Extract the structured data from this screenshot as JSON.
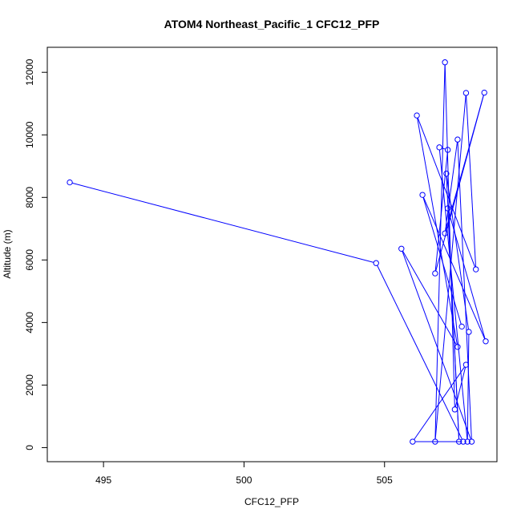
{
  "chart_data": {
    "type": "line",
    "title": "ATOM4 Northeast_Pacific_1 CFC12_PFP",
    "xlabel": "CFC12_PFP",
    "ylabel": "Altitude (m)",
    "xlim": [
      493.0,
      509.0
    ],
    "ylim": [
      -450,
      12800
    ],
    "xticks": [
      495,
      500,
      505
    ],
    "yticks": [
      0,
      2000,
      4000,
      6000,
      8000,
      10000,
      12000
    ],
    "grid": false,
    "legend": "none",
    "series_color": "#0000ff",
    "series": [
      {
        "points": [
          {
            "x": 493.8,
            "y": 8480
          },
          {
            "x": 504.7,
            "y": 5900
          },
          {
            "x": 507.8,
            "y": 190
          },
          {
            "x": 506.0,
            "y": 190
          },
          {
            "x": 507.9,
            "y": 2650
          },
          {
            "x": 507.5,
            "y": 1220
          },
          {
            "x": 507.15,
            "y": 12320
          },
          {
            "x": 506.8,
            "y": 190
          },
          {
            "x": 507.9,
            "y": 11340
          },
          {
            "x": 508.25,
            "y": 5700
          },
          {
            "x": 506.15,
            "y": 10620
          },
          {
            "x": 507.6,
            "y": 3220
          },
          {
            "x": 505.6,
            "y": 6360
          },
          {
            "x": 508.1,
            "y": 190
          },
          {
            "x": 507.6,
            "y": 9850
          },
          {
            "x": 507.15,
            "y": 6850
          },
          {
            "x": 508.55,
            "y": 11350
          },
          {
            "x": 506.8,
            "y": 5570
          },
          {
            "x": 507.25,
            "y": 9520
          },
          {
            "x": 506.95,
            "y": 9600
          },
          {
            "x": 507.95,
            "y": 190
          },
          {
            "x": 508.0,
            "y": 3700
          },
          {
            "x": 507.2,
            "y": 8760
          },
          {
            "x": 507.65,
            "y": 190
          },
          {
            "x": 507.25,
            "y": 7650
          },
          {
            "x": 508.6,
            "y": 3400
          },
          {
            "x": 506.35,
            "y": 8080
          },
          {
            "x": 507.75,
            "y": 3870
          }
        ]
      }
    ]
  }
}
